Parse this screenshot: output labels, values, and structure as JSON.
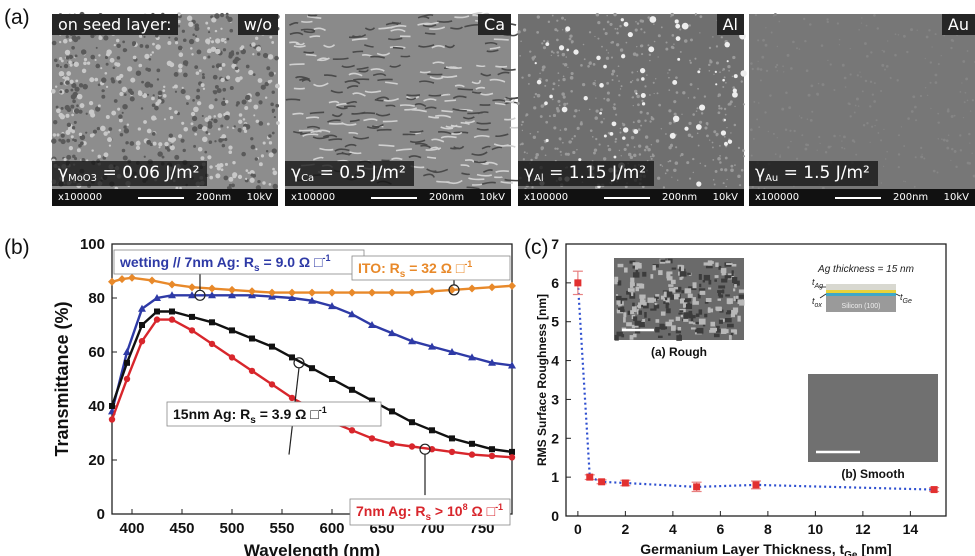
{
  "panel_a": {
    "letter": "(a)",
    "images": [
      {
        "tag": "w/o",
        "prefix_label": "on seed layer:",
        "gamma_sub": "MoO3",
        "gamma_value": " = 0.06 J/m²",
        "mag": "x100000",
        "scale": "200nm",
        "kv": "10kV",
        "tone": "#8d8d8d"
      },
      {
        "tag": "Ca",
        "gamma_sub": "Ca",
        "gamma_value": " = 0.5 J/m²",
        "mag": "x100000",
        "scale": "200nm",
        "kv": "10kV",
        "tone": "#8a8a8a"
      },
      {
        "tag": "Al",
        "gamma_sub": "Al",
        "gamma_value": " = 1.15 J/m²",
        "mag": "x100000",
        "scale": "200nm",
        "kv": "10kV",
        "tone": "#6f6f6f"
      },
      {
        "tag": "Au",
        "gamma_sub": "Au",
        "gamma_value": " = 1.5 J/m²",
        "mag": "x100000",
        "scale": "200nm",
        "kv": "10kV",
        "tone": "#777777"
      }
    ]
  },
  "panel_b": {
    "letter": "(b)"
  },
  "panel_c": {
    "letter": "(c)"
  },
  "chart_data": [
    {
      "type": "line",
      "xlabel": "Wavelength (nm)",
      "ylabel": "Transmittance (%)",
      "xlim": [
        380,
        780
      ],
      "ylim": [
        0,
        100
      ],
      "xticks": [
        "400",
        "450",
        "500",
        "550",
        "600",
        "650",
        "700",
        "750"
      ],
      "yticks": [
        "0",
        "20",
        "40",
        "60",
        "80",
        "100"
      ],
      "grid": false,
      "series": [
        {
          "name": "wetting // 7nm Ag",
          "color": "#2e3aa6",
          "marker": "triangle",
          "x": [
            380,
            395,
            410,
            425,
            440,
            460,
            480,
            500,
            520,
            540,
            560,
            580,
            600,
            620,
            640,
            660,
            680,
            700,
            720,
            740,
            760,
            780
          ],
          "y": [
            38,
            60,
            76,
            80,
            81,
            81,
            81,
            81,
            81,
            80.5,
            80,
            79,
            77,
            74,
            70,
            67,
            64,
            62,
            60,
            58,
            56,
            55
          ]
        },
        {
          "name": "ITO",
          "color": "#e8892a",
          "marker": "diamond",
          "x": [
            380,
            390,
            400,
            420,
            440,
            460,
            480,
            500,
            520,
            540,
            560,
            580,
            600,
            620,
            640,
            660,
            680,
            700,
            720,
            740,
            760,
            780
          ],
          "y": [
            86,
            87,
            87.5,
            86.5,
            85,
            84,
            83.5,
            83,
            82.5,
            82,
            82,
            82,
            82,
            82,
            82,
            82,
            82,
            82.5,
            83,
            83.5,
            84,
            84.5
          ]
        },
        {
          "name": "15nm Ag",
          "color": "#111111",
          "marker": "square",
          "x": [
            380,
            395,
            410,
            425,
            440,
            460,
            480,
            500,
            520,
            540,
            560,
            580,
            600,
            620,
            640,
            660,
            680,
            700,
            720,
            740,
            760,
            780
          ],
          "y": [
            40,
            56,
            70,
            75,
            75,
            73,
            71,
            68,
            65,
            62,
            58,
            54,
            50,
            46,
            42,
            38,
            34,
            31,
            28,
            26,
            24,
            23
          ]
        },
        {
          "name": "7nm Ag",
          "color": "#d8262c",
          "marker": "circle",
          "x": [
            380,
            395,
            410,
            425,
            440,
            460,
            480,
            500,
            520,
            540,
            560,
            580,
            600,
            620,
            640,
            660,
            680,
            700,
            720,
            740,
            760,
            780
          ],
          "y": [
            35,
            50,
            64,
            72,
            72,
            68,
            63,
            58,
            53,
            48,
            43,
            39,
            34,
            31,
            28,
            26,
            25,
            24,
            23,
            22,
            21.5,
            21
          ]
        }
      ],
      "annotations": [
        {
          "prefix": "wetting // 7nm Ag: R",
          "sub": "s",
          "suffix": " = 9.0 Ω □",
          "sup": "-1",
          "color": "#2e3aa6"
        },
        {
          "prefix": "ITO: R",
          "sub": "s",
          "suffix": " = 32 Ω □",
          "sup": "-1",
          "color": "#e8892a"
        },
        {
          "prefix": "15nm Ag: R",
          "sub": "s",
          "suffix": " = 3.9 Ω □",
          "sup": "-1",
          "color": "#111111"
        },
        {
          "prefix": "7nm Ag: R",
          "sub": "s",
          "suffix": " > 10",
          "sup8": "8",
          "mid": " Ω □",
          "sup": "-1",
          "color": "#d8262c"
        }
      ]
    },
    {
      "type": "scatter",
      "xlabel": "Germanium Layer Thickness, t",
      "xlabel_sub": "Ge",
      "xlabel_unit": " [nm]",
      "ylabel": "RMS Surface Roughness [nm]",
      "xlim": [
        -0.5,
        15.5
      ],
      "ylim": [
        0,
        7
      ],
      "xticks": [
        "0",
        "2",
        "4",
        "6",
        "8",
        "10",
        "12",
        "14"
      ],
      "yticks": [
        "0",
        "1",
        "2",
        "3",
        "4",
        "5",
        "6",
        "7"
      ],
      "grid": false,
      "series": [
        {
          "color": "#e23030",
          "line_color": "#2e4fd0",
          "x": [
            0,
            0.5,
            1,
            2,
            5,
            7.5,
            15
          ],
          "y": [
            6.0,
            1.0,
            0.88,
            0.85,
            0.75,
            0.8,
            0.68
          ],
          "err": [
            0.3,
            0.06,
            0.05,
            0.07,
            0.12,
            0.1,
            0.05
          ]
        }
      ],
      "inset_labels": {
        "rough": "(a) Rough",
        "smooth": "(b) Smooth",
        "ag_thickness": "Ag thickness = 15 nm",
        "t": "t",
        "sub_ag": "Ag",
        "sub_ox": "ox",
        "sub_ge": "Ge",
        "silicon": "Silicon (100)"
      }
    }
  ]
}
